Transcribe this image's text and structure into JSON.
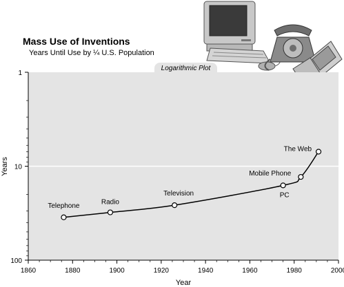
{
  "chart_data": {
    "type": "line",
    "title": "Mass Use of Inventions",
    "subtitle": "Years Until Use by ¼ U.S. Population",
    "plot_tag": "Logarithmic Plot",
    "xlabel": "Year",
    "ylabel": "Years",
    "xlim": [
      1860,
      2000
    ],
    "ylim": [
      1,
      100
    ],
    "y_scale": "log",
    "y_inverted": true,
    "x_ticks": [
      1860,
      1880,
      1900,
      1920,
      1940,
      1960,
      1980,
      2000
    ],
    "y_ticks": [
      1,
      10,
      100
    ],
    "grid": "horizontal line at 10",
    "points": [
      {
        "label": "Telephone",
        "x": 1876,
        "y": 35
      },
      {
        "label": "Radio",
        "x": 1897,
        "y": 31
      },
      {
        "label": "Television",
        "x": 1926,
        "y": 26
      },
      {
        "label": "PC",
        "x": 1975,
        "y": 16
      },
      {
        "label": "Mobile Phone",
        "x": 1983,
        "y": 13
      },
      {
        "label": "The Web",
        "x": 1991,
        "y": 7
      }
    ],
    "colors": {
      "plot_bg": "#e4e4e4",
      "line": "#000000",
      "marker_fill": "#ffffff"
    }
  }
}
